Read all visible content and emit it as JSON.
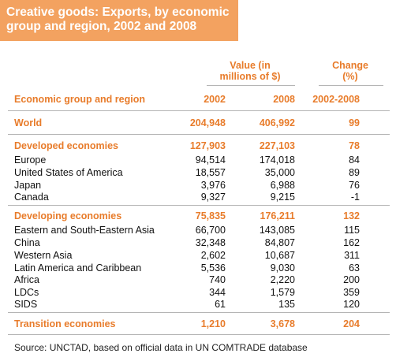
{
  "title": {
    "line1": "Creative goods: Exports, by economic",
    "line2": "group and region, 2002 and 2008"
  },
  "headers": {
    "value_group_line1": "Value (in",
    "value_group_line2": "millions of $)",
    "change_group_line1": "Change",
    "change_group_line2": "(%)",
    "col_region": "Economic group and region",
    "col_2002": "2002",
    "col_2008": "2008",
    "col_change": "2002-2008"
  },
  "rows": [
    {
      "label": "World",
      "v2002": "204,948",
      "v2008": "406,992",
      "change": "99",
      "bold": true
    },
    {
      "label": "Developed economies",
      "v2002": "127,903",
      "v2008": "227,103",
      "change": "78",
      "bold": true
    },
    {
      "label": "Europe",
      "v2002": "94,514",
      "v2008": "174,018",
      "change": "84",
      "bold": false
    },
    {
      "label": "United States of America",
      "v2002": "18,557",
      "v2008": "35,000",
      "change": "89",
      "bold": false
    },
    {
      "label": "Japan",
      "v2002": "3,976",
      "v2008": "6,988",
      "change": "76",
      "bold": false
    },
    {
      "label": "Canada",
      "v2002": "9,327",
      "v2008": "9,215",
      "change": "-1",
      "bold": false
    },
    {
      "label": "Developing economies",
      "v2002": "75,835",
      "v2008": "176,211",
      "change": "132",
      "bold": true
    },
    {
      "label": "Eastern and South-Eastern Asia",
      "v2002": "66,700",
      "v2008": "143,085",
      "change": "115",
      "bold": false
    },
    {
      "label": "China",
      "v2002": "32,348",
      "v2008": "84,807",
      "change": "162",
      "bold": false
    },
    {
      "label": "Western Asia",
      "v2002": "2,602",
      "v2008": "10,687",
      "change": "311",
      "bold": false
    },
    {
      "label": "Latin America and Caribbean",
      "v2002": "5,536",
      "v2008": "9,030",
      "change": "63",
      "bold": false
    },
    {
      "label": "Africa",
      "v2002": "740",
      "v2008": "2,220",
      "change": "200",
      "bold": false
    },
    {
      "label": "LDCs",
      "v2002": "344",
      "v2008": "1,579",
      "change": "359",
      "bold": false
    },
    {
      "label": "SIDS",
      "v2002": "61",
      "v2008": "135",
      "change": "120",
      "bold": false
    },
    {
      "label": "Transition economies",
      "v2002": "1,210",
      "v2008": "3,678",
      "change": "204",
      "bold": true
    }
  ],
  "source": "Source: UNCTAD, based on official data in UN COMTRADE database"
}
